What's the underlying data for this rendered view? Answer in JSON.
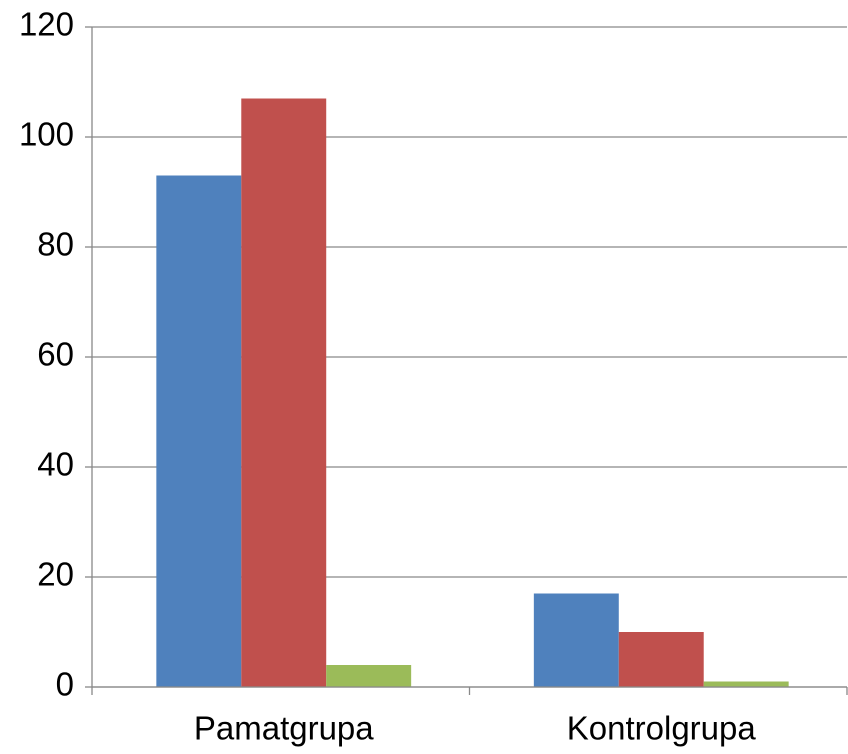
{
  "chart_data": {
    "type": "bar",
    "categories": [
      "Pamatgrupa",
      "Kontrolgrupa"
    ],
    "series": [
      {
        "color": "#4f81bd",
        "values": [
          93,
          17
        ]
      },
      {
        "color": "#c0504d",
        "values": [
          107,
          10
        ]
      },
      {
        "color": "#9bbb59",
        "values": [
          4,
          1
        ]
      }
    ],
    "ylim": [
      0,
      120
    ],
    "yticks": [
      0,
      20,
      40,
      60,
      80,
      100,
      120
    ],
    "grid": true
  }
}
